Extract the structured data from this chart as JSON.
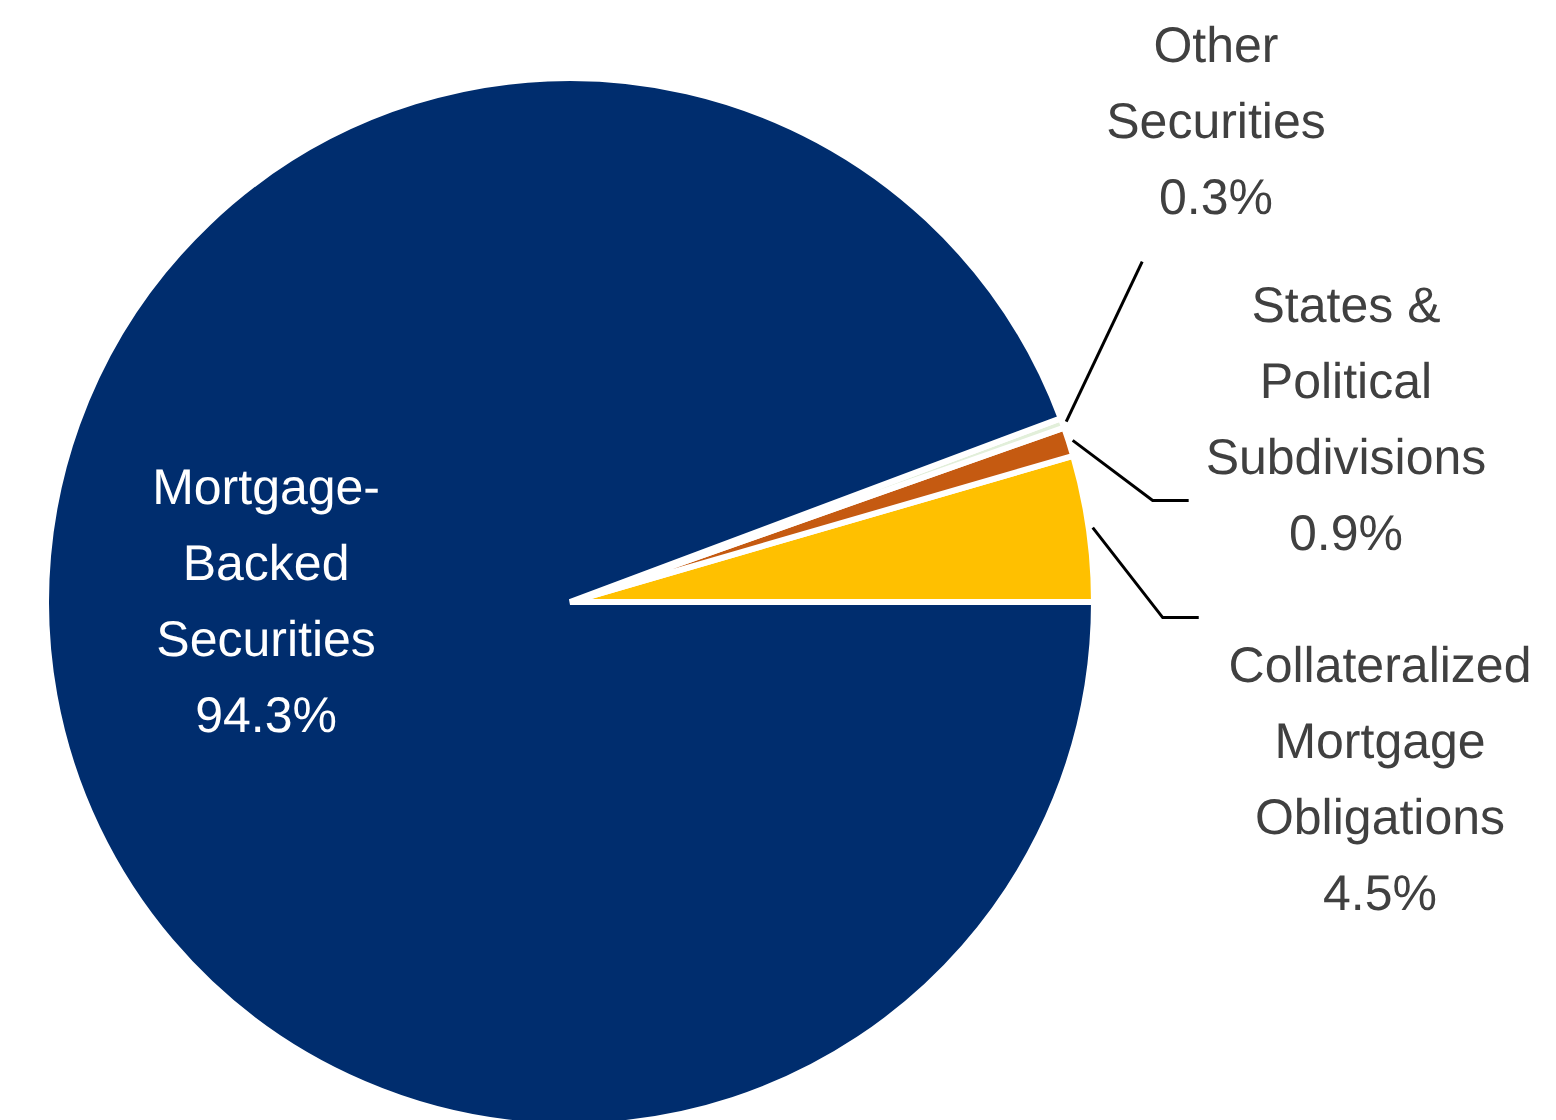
{
  "chart_data": {
    "type": "pie",
    "categories": [
      "Collateralized Mortgage Obligations",
      "States & Political Subdivisions",
      "Other Securities",
      "Mortgage-Backed Securities"
    ],
    "values": [
      4.5,
      0.9,
      0.3,
      94.3
    ],
    "colors": [
      "#ffc000",
      "#c55a11",
      "#e2efda",
      "#002d6e"
    ],
    "value_labels": [
      "4.5%",
      "0.9%",
      "0.3%",
      "94.3%"
    ]
  }
}
